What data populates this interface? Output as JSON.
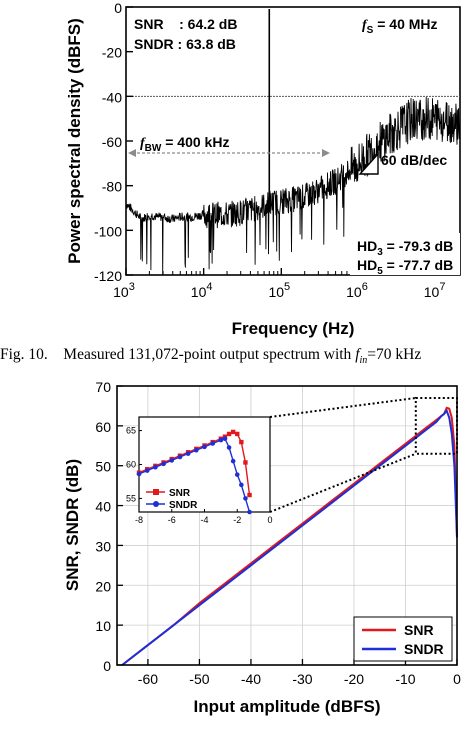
{
  "chart_data": [
    {
      "type": "line",
      "xlabel": "Frequency (Hz)",
      "ylabel": "Power spectral density (dBFS)",
      "xscale": "log",
      "xlim": [
        1000,
        20000000
      ],
      "ylim": [
        -120,
        0
      ],
      "xticks": [
        1000,
        10000,
        100000,
        1000000,
        10000000
      ],
      "xtick_labels": [
        [
          "10",
          "3"
        ],
        [
          "10",
          "4"
        ],
        [
          "10",
          "5"
        ],
        [
          "10",
          "6"
        ],
        [
          "10",
          "7"
        ]
      ],
      "yticks": [
        0,
        -20,
        -40,
        -60,
        -80,
        -100,
        -120
      ],
      "grid": false,
      "series": [
        {
          "x": [
            1000,
            1300,
            1600,
            2000,
            2500,
            3000,
            4000,
            5000,
            7000,
            10000,
            15000,
            20000,
            30000,
            50000,
            70000,
            100000,
            150000,
            200000,
            300000,
            500000,
            700000,
            1000000,
            1500000,
            2000000,
            3000000,
            4000000,
            5000000,
            7000000,
            10000000,
            15000000,
            20000000
          ],
          "y": [
            -88,
            -92,
            -95,
            -93,
            -94,
            -94,
            -95,
            -94,
            -94,
            -93,
            -93,
            -93,
            -92,
            -90,
            -88,
            -87,
            -86,
            -85,
            -82,
            -78,
            -74,
            -70,
            -64,
            -60,
            -55,
            -52,
            -50,
            -50,
            -50,
            -51,
            -52
          ]
        }
      ],
      "tone": {
        "x": 70000,
        "y": 0
      },
      "annotations": {
        "snr": "SNR    : 64.2 dB",
        "sndr": "SNDR : 63.8 dB",
        "fs_main": "f",
        "fs_sub": "S",
        "fs_val": " = 40 MHz",
        "fbw_main": "f",
        "fbw_sub": "BW",
        "fbw_val": " = 400 kHz",
        "slope": "60 dB/dec",
        "hd3_main": "HD",
        "hd3_sub": "3",
        "hd3_val": " = -79.3 dB",
        "hd5_main": "HD",
        "hd5_sub": "5",
        "hd5_val": " = -77.7 dB"
      },
      "reference_line_y": -40
    },
    {
      "type": "line",
      "xlabel": "Input amplitude (dBFS)",
      "ylabel": "SNR, SNDR (dB)",
      "xlim": [
        -66,
        0
      ],
      "ylim": [
        0,
        70
      ],
      "xticks": [
        -60,
        -50,
        -40,
        -30,
        -20,
        -10,
        0
      ],
      "yticks": [
        0,
        10,
        20,
        30,
        40,
        50,
        60,
        70
      ],
      "grid": true,
      "legend_position": "bottom-right",
      "series": [
        {
          "name": "SNR",
          "color": "#e0191e",
          "x": [
            -65,
            -60,
            -55,
            -50,
            -45,
            -40,
            -35,
            -30,
            -25,
            -20,
            -15,
            -10,
            -8,
            -6,
            -4,
            -3,
            -2.5,
            -2,
            -1.5,
            -1,
            -0.5,
            0
          ],
          "y": [
            0,
            5,
            10,
            15.5,
            20.5,
            25.5,
            30.5,
            35.5,
            40.5,
            45.5,
            50.5,
            55.5,
            57.5,
            59.5,
            61.5,
            62.5,
            63,
            64.5,
            64.3,
            62,
            55,
            32
          ]
        },
        {
          "name": "SNDR",
          "color": "#1f2fd6",
          "x": [
            -65,
            -60,
            -55,
            -50,
            -45,
            -40,
            -35,
            -30,
            -25,
            -20,
            -15,
            -10,
            -8,
            -6,
            -4,
            -3,
            -2.5,
            -2,
            -1.5,
            -1,
            -0.5,
            0
          ],
          "y": [
            0,
            5,
            10,
            15,
            20,
            25,
            30,
            35,
            40,
            45,
            50,
            55,
            57,
            59,
            61,
            62.5,
            63,
            63.8,
            62,
            58,
            50,
            32
          ]
        }
      ],
      "inset": {
        "xlim": [
          -8,
          0
        ],
        "ylim": [
          53,
          67
        ],
        "xticks": [
          -8,
          -6,
          -4,
          -2,
          0
        ],
        "yticks": [
          55,
          60,
          65
        ],
        "series": [
          {
            "name": "SNR",
            "color": "#e0191e",
            "x": [
              -8,
              -7.5,
              -7,
              -6.5,
              -6,
              -5.5,
              -5,
              -4.5,
              -4,
              -3.5,
              -3,
              -2.75,
              -2.5,
              -2.25,
              -2,
              -1.75,
              -1.5,
              -1.25
            ],
            "y": [
              58.8,
              59.3,
              59.8,
              60.3,
              60.8,
              61.3,
              61.8,
              62.3,
              62.8,
              63.3,
              63.8,
              64.1,
              64.5,
              64.8,
              64.5,
              63.3,
              60.3,
              55.5
            ]
          },
          {
            "name": "SNDR",
            "color": "#1f2fd6",
            "x": [
              -8,
              -7.5,
              -7,
              -6.5,
              -6,
              -5.5,
              -5,
              -4.5,
              -4,
              -3.5,
              -3,
              -2.75,
              -2.5,
              -2.25,
              -2,
              -1.75,
              -1.5,
              -1.25
            ],
            "y": [
              58.6,
              59.1,
              59.6,
              60.1,
              60.6,
              61.1,
              61.6,
              62.1,
              62.6,
              63.1,
              63.6,
              63.8,
              62.5,
              60.5,
              58.5,
              57,
              55,
              53
            ]
          }
        ]
      }
    }
  ],
  "caption": {
    "prefix": "Fig. 10.    Measured 131,072-point output spectrum with ",
    "f": "f",
    "sub": "in",
    "suffix": "=70 kHz"
  }
}
